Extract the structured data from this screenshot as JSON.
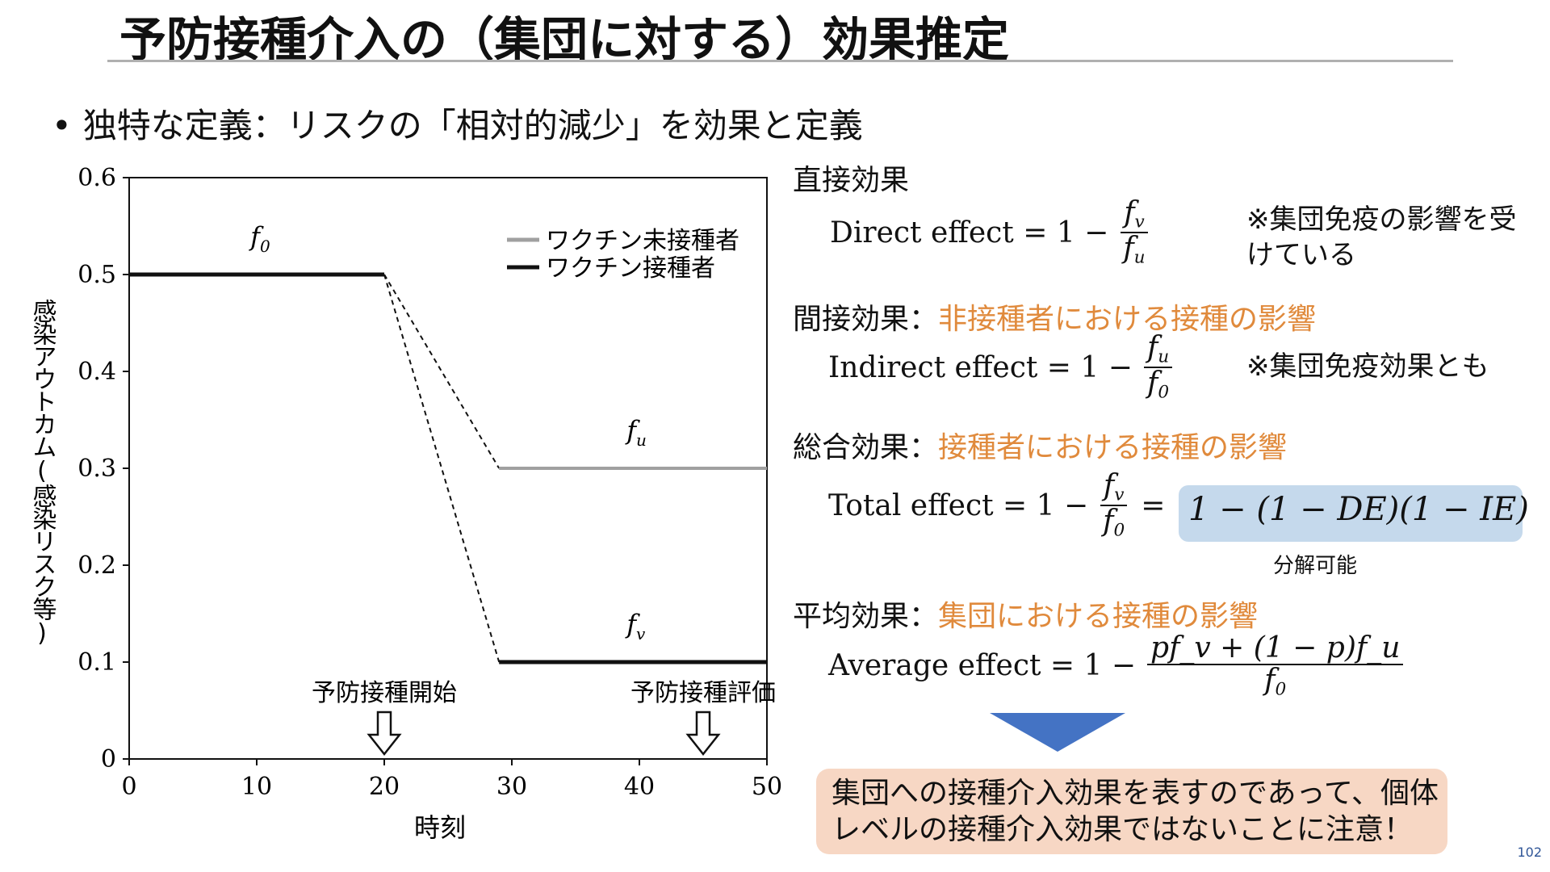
{
  "title": "予防接種介入の（集団に対する）効果推定",
  "bullet": "独特な定義：リスクの「相対的減少」を効果と定義",
  "chart_data": {
    "type": "line",
    "xlabel": "時刻",
    "ylabel": "感染アウトカム(感染リスク等)",
    "xlim": [
      0,
      50
    ],
    "ylim": [
      0,
      0.6
    ],
    "xticks": [
      "0",
      "10",
      "20",
      "30",
      "40",
      "50"
    ],
    "yticks": [
      "0",
      "0.1",
      "0.2",
      "0.3",
      "0.4",
      "0.5",
      "0.6"
    ],
    "legend_position": "top-right",
    "series": [
      {
        "name": "ワクチン未接種者",
        "color": "#a0a0a0",
        "x": [
          0,
          20,
          29,
          50
        ],
        "y": [
          0.5,
          0.5,
          0.3,
          0.3
        ],
        "dashed_segment": [
          1,
          2
        ]
      },
      {
        "name": "ワクチン接種者",
        "color": "#111111",
        "x": [
          0,
          20,
          29,
          50
        ],
        "y": [
          0.5,
          0.5,
          0.1,
          0.1
        ],
        "dashed_segment": [
          1,
          2
        ]
      }
    ],
    "curve_labels": [
      {
        "text": "f0",
        "x": 9.5,
        "y": 0.53
      },
      {
        "text": "fu",
        "x": 39,
        "y": 0.33
      },
      {
        "text": "fv",
        "x": 39,
        "y": 0.13
      }
    ],
    "annotations": [
      {
        "text": "予防接種開始",
        "x": 20,
        "arrow": "down"
      },
      {
        "text": "予防接種評価",
        "x": 45,
        "arrow": "down"
      }
    ]
  },
  "sections": {
    "direct": {
      "header": "直接効果",
      "eq_lhs": "Direct effect = 1 −",
      "num": "f",
      "num_sub": "v",
      "den": "f",
      "den_sub": "u",
      "note": "※集団免疫の影響を受けている"
    },
    "indirect": {
      "header": "間接効果：",
      "header_orange": "非接種者における接種の影響",
      "eq_lhs": "Indirect effect = 1 −",
      "num": "f",
      "num_sub": "u",
      "den": "f",
      "den_sub": "0",
      "note": "※集団免疫効果とも"
    },
    "total": {
      "header": "総合効果：",
      "header_orange": "接種者における接種の影響",
      "eq_lhs": "Total effect = 1 −",
      "num": "f",
      "num_sub": "v",
      "den": "f",
      "den_sub": "0",
      "eq_equals": "=",
      "highlight": "1 − (1 − DE)(1 − IE)",
      "caption": "分解可能"
    },
    "average": {
      "header": "平均効果：",
      "header_orange": "集団における接種の影響",
      "eq_lhs": "Average effect = 1 −",
      "num": "pf_v + (1 − p)f_u",
      "den": "f",
      "den_sub": "0"
    }
  },
  "callout": "集団への接種介入効果を表すのであって、個体レベルの接種介入効果ではないことに注意！",
  "page_number": "102",
  "colors": {
    "accent_orange": "#e08a3c",
    "highlight_blue": "#c5d9ec",
    "callout_bg": "#f7d7c4",
    "triangle": "#4473c4"
  }
}
